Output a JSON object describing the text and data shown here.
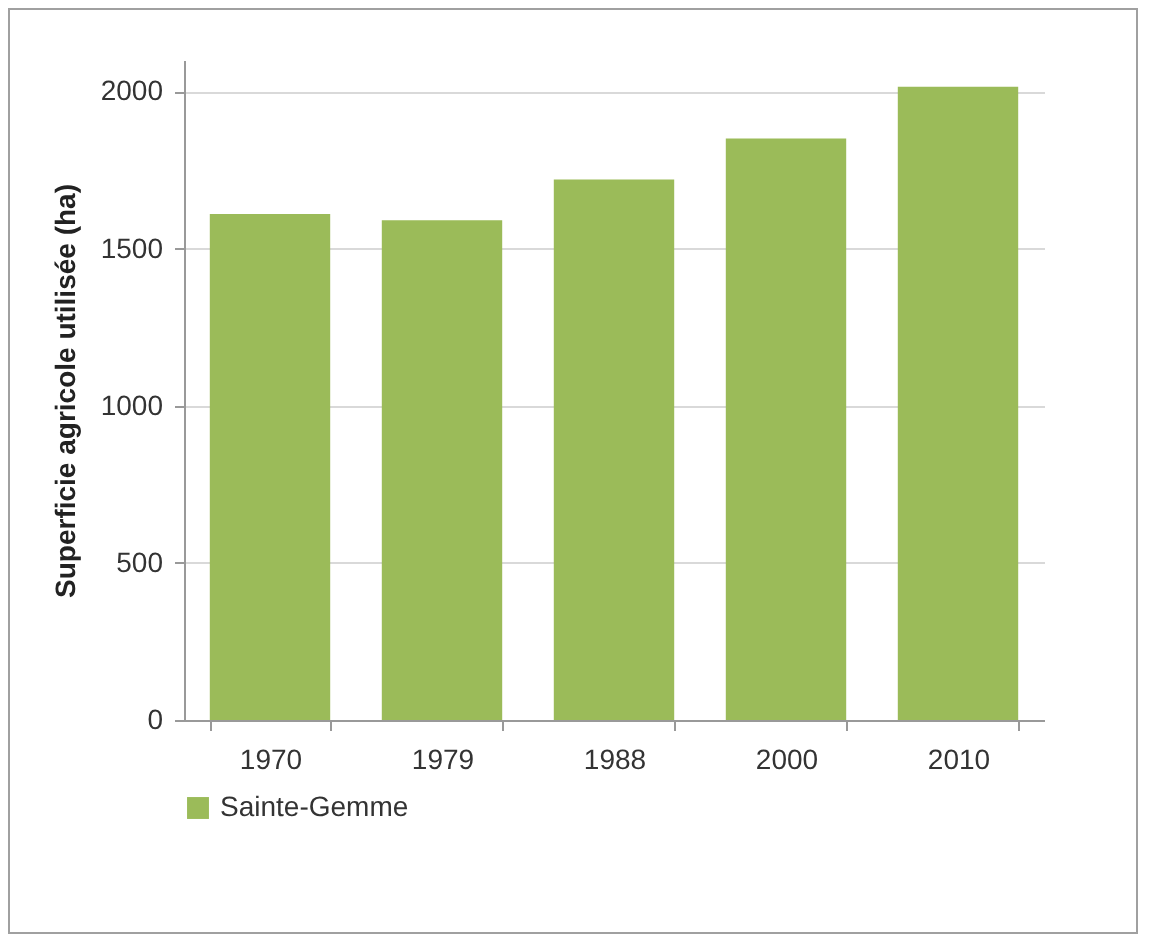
{
  "chart_data": {
    "type": "bar",
    "ylabel": "Superficie agricole utilisée (ha)",
    "categories": [
      "1970",
      "1979",
      "1988",
      "2000",
      "2010"
    ],
    "series": [
      {
        "name": "Sainte-Gemme",
        "color": "#9bbb59",
        "values": [
          1610,
          1590,
          1720,
          1850,
          2015
        ]
      }
    ],
    "ylim": [
      0,
      2100
    ],
    "yticks": [
      0,
      500,
      1000,
      1500,
      2000
    ],
    "grid": "y",
    "legend": "bottom"
  }
}
